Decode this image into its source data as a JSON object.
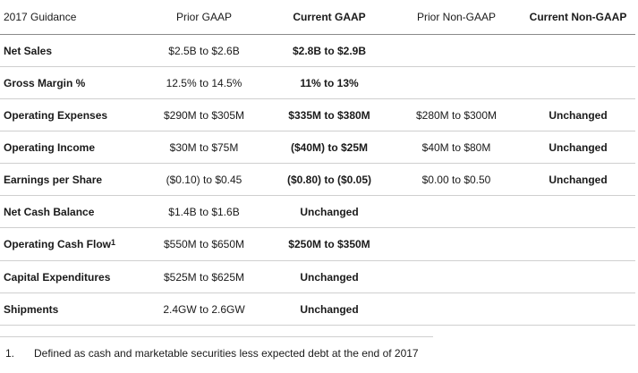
{
  "table": {
    "headers": [
      "2017 Guidance",
      "Prior GAAP",
      "Current GAAP",
      "Prior Non-GAAP",
      "Current Non-GAAP"
    ],
    "rows": [
      {
        "metric": "Net Sales",
        "superscript": "",
        "prior_gaap": "$2.5B to $2.6B",
        "current_gaap": "$2.8B to $2.9B",
        "prior_non_gaap": "",
        "current_non_gaap": ""
      },
      {
        "metric": "Gross Margin %",
        "superscript": "",
        "prior_gaap": "12.5% to 14.5%",
        "current_gaap": "11% to 13%",
        "prior_non_gaap": "",
        "current_non_gaap": ""
      },
      {
        "metric": "Operating Expenses",
        "superscript": "",
        "prior_gaap": "$290M to $305M",
        "current_gaap": "$335M to $380M",
        "prior_non_gaap": "$280M to $300M",
        "current_non_gaap": "Unchanged"
      },
      {
        "metric": "Operating Income",
        "superscript": "",
        "prior_gaap": "$30M to $75M",
        "current_gaap": "($40M) to $25M",
        "prior_non_gaap": "$40M to $80M",
        "current_non_gaap": "Unchanged"
      },
      {
        "metric": "Earnings per Share",
        "superscript": "",
        "prior_gaap": "($0.10) to $0.45",
        "current_gaap": "($0.80) to ($0.05)",
        "prior_non_gaap": "$0.00 to $0.50",
        "current_non_gaap": "Unchanged"
      },
      {
        "metric": "Net Cash Balance",
        "superscript": "",
        "prior_gaap": "$1.4B to $1.6B",
        "current_gaap": "Unchanged",
        "prior_non_gaap": "",
        "current_non_gaap": ""
      },
      {
        "metric": "Operating Cash Flow",
        "superscript": "1",
        "prior_gaap": "$550M to $650M",
        "current_gaap": "$250M to $350M",
        "prior_non_gaap": "",
        "current_non_gaap": ""
      },
      {
        "metric": "Capital Expenditures",
        "superscript": "",
        "prior_gaap": "$525M to $625M",
        "current_gaap": "Unchanged",
        "prior_non_gaap": "",
        "current_non_gaap": ""
      },
      {
        "metric": "Shipments",
        "superscript": "",
        "prior_gaap": "2.4GW to 2.6GW",
        "current_gaap": "Unchanged",
        "prior_non_gaap": "",
        "current_non_gaap": ""
      }
    ]
  },
  "footnote": {
    "number": "1.",
    "text": "Defined as cash and marketable securities less expected debt at the end of 2017"
  }
}
